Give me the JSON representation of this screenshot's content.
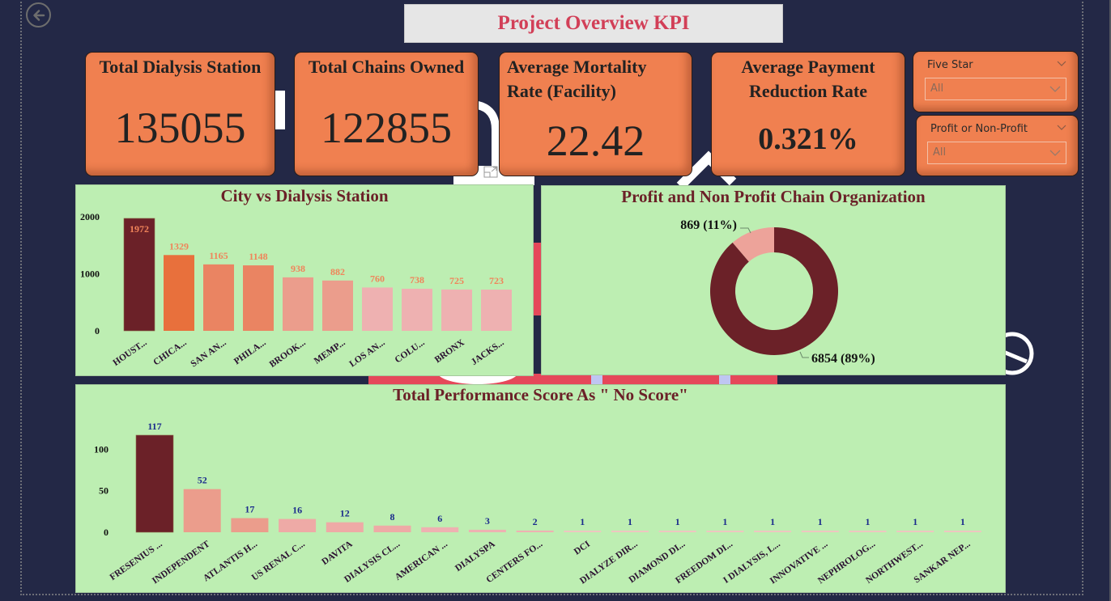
{
  "page": {
    "title": "Project Overview KPI",
    "back_icon": "back-arrow-circle-icon"
  },
  "colors": {
    "background": "#232846",
    "kpi_card": "#f08050",
    "panel": "#bdeeb2",
    "title_text": "#d23f57",
    "panel_title": "#6b2128",
    "bar_data_label_city": "#f0845a",
    "bar_data_label_score": "#1a2a8c",
    "donut_profit": "#6b2128",
    "donut_nonprofit": "#eda39a"
  },
  "kpis": [
    {
      "label": "Total Dialysis Station",
      "value": "135055"
    },
    {
      "label": "Total Chains Owned",
      "value": "122855"
    },
    {
      "label_line1": "Average Mortality",
      "label_line2": "Rate (Facility)",
      "value": "22.42"
    },
    {
      "label_line1": "Average Payment",
      "label_line2": "Reduction Rate",
      "value": "0.321%"
    }
  ],
  "slicers": [
    {
      "title": "Five Star",
      "selected": "All"
    },
    {
      "title": "Profit or Non-Profit",
      "selected": "All"
    }
  ],
  "chart_data": [
    {
      "type": "bar",
      "title": "City vs Dialysis Station",
      "categories": [
        "HOUST...",
        "CHICA...",
        "SAN AN...",
        "PHILA...",
        "BROOK...",
        "MEMP...",
        "LOS AN...",
        "COLU...",
        "BRONX",
        "JACKS..."
      ],
      "values": [
        1972,
        1329,
        1165,
        1148,
        938,
        882,
        760,
        738,
        725,
        723
      ],
      "bar_colors": [
        "#6b2128",
        "#e8703c",
        "#ea8462",
        "#ea8462",
        "#eb9d8c",
        "#eb9d8c",
        "#eeb1b1",
        "#eeb1b1",
        "#eeb1b1",
        "#eeb1b1"
      ],
      "yticks": [
        0,
        1000,
        2000
      ],
      "ylim": [
        0,
        2000
      ],
      "xlabel": "",
      "ylabel": "",
      "grid": false
    },
    {
      "type": "pie",
      "variant": "donut",
      "title": "Profit and Non Profit Chain Organization",
      "slices": [
        {
          "value": 6854,
          "percent": 89,
          "label": "6854 (89%)",
          "color": "#6b2128"
        },
        {
          "value": 869,
          "percent": 11,
          "label": "869 (11%)",
          "color": "#eda39a"
        }
      ]
    },
    {
      "type": "bar",
      "title": "Total Performance Score As \" No Score\"",
      "categories": [
        "FRESENIUS ...",
        "INDEPENDENT",
        "ATLANTIS H...",
        "US RENAL C...",
        "DAVITA",
        "DIALYSIS CL...",
        "AMERICAN ...",
        "DIALYSPA",
        "CENTERS FO...",
        "DCI",
        "DIALYZE DIR...",
        "DIAMOND DI...",
        "FREEDOM DI...",
        "I DIALYSIS, L...",
        "INNOVATIVE ...",
        "NEPHROLOG...",
        "NORTHWEST...",
        "SANKAR NEP..."
      ],
      "values": [
        117,
        52,
        17,
        16,
        12,
        8,
        6,
        3,
        2,
        1,
        1,
        1,
        1,
        1,
        1,
        1,
        1,
        1
      ],
      "bar_colors": [
        "#6b2128",
        "#eb9d8c",
        "#eb9d8c",
        "#eeaaa6",
        "#eeaaa6",
        "#eeaaa6",
        "#eeb1b1",
        "#eeb1b1",
        "#eeb1b1",
        "#eec6c0",
        "#eec6c0",
        "#eec6c0",
        "#eec6c0",
        "#eec6c0",
        "#eec6c0",
        "#eec6c0",
        "#eec6c0",
        "#eec6c0"
      ],
      "yticks": [
        0,
        50,
        100
      ],
      "ylim": [
        0,
        117
      ],
      "xlabel": "",
      "ylabel": "",
      "grid": false
    }
  ]
}
